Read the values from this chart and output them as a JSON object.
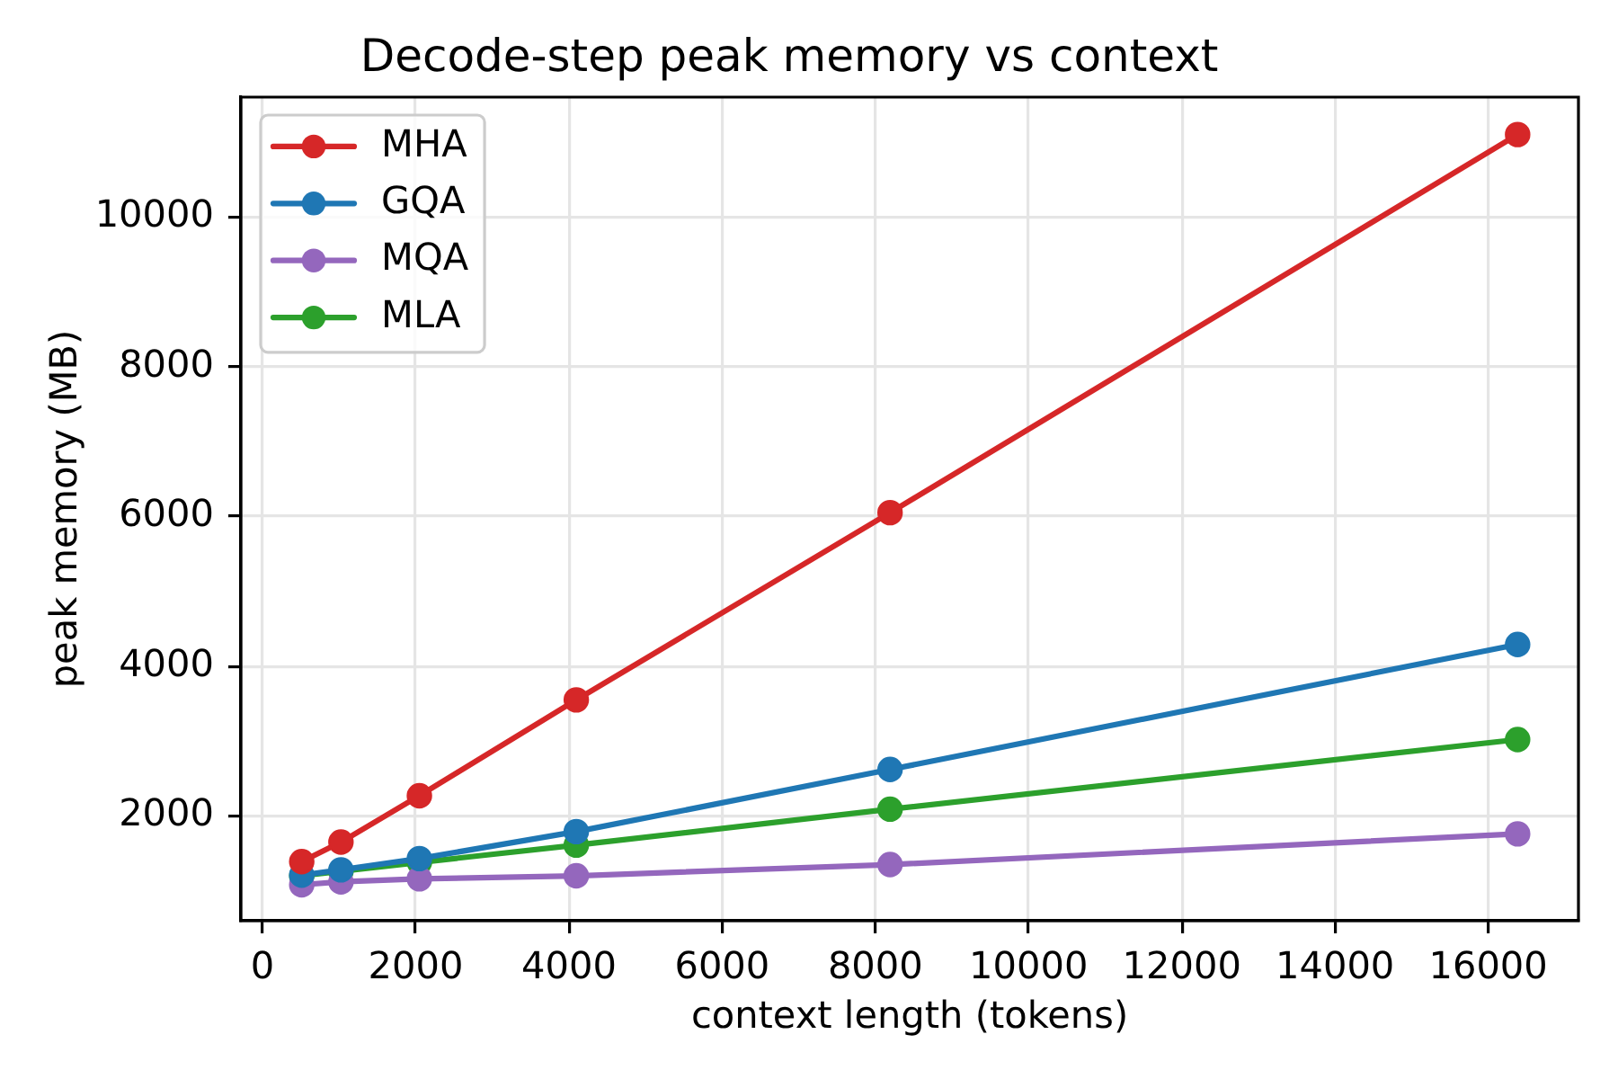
{
  "chart_data": {
    "type": "line",
    "title": "Decode-step peak memory vs context",
    "xlabel": "context length (tokens)",
    "ylabel": "peak memory (MB)",
    "x": [
      512,
      1024,
      2048,
      4096,
      8192,
      16384
    ],
    "series": [
      {
        "name": "MHA",
        "color": "#d62728",
        "values": [
          1390,
          1650,
          2270,
          3550,
          6050,
          11100
        ]
      },
      {
        "name": "GQA",
        "color": "#1f77b4",
        "values": [
          1210,
          1280,
          1430,
          1790,
          2620,
          4290
        ]
      },
      {
        "name": "MQA",
        "color": "#9467bd",
        "values": [
          1080,
          1120,
          1160,
          1200,
          1350,
          1760
        ]
      },
      {
        "name": "MLA",
        "color": "#2ca02c",
        "values": [
          1200,
          1260,
          1380,
          1610,
          2090,
          3020
        ]
      }
    ],
    "xlim": [
      -282,
      17178
    ],
    "ylim": [
      600,
      11600
    ],
    "xticks": [
      0,
      2000,
      4000,
      6000,
      8000,
      10000,
      12000,
      14000,
      16000
    ],
    "yticks": [
      2000,
      4000,
      6000,
      8000,
      10000
    ],
    "grid": true,
    "legend": "top left",
    "marker": "circle",
    "line_style": "solid"
  }
}
